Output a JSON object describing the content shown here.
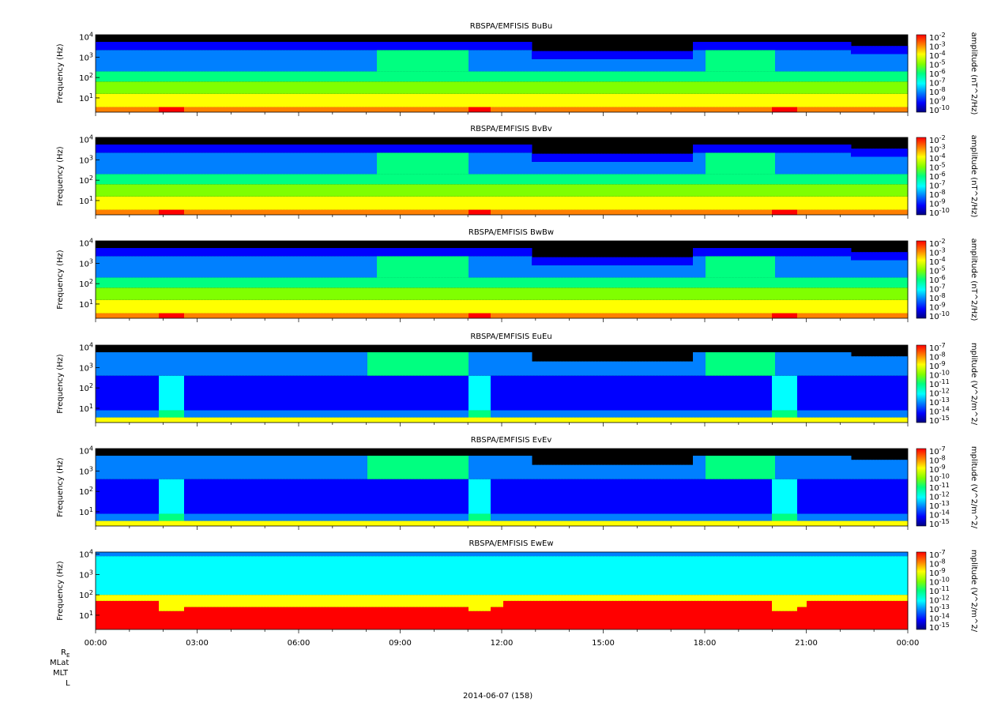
{
  "chart_data": {
    "type": "heatmap",
    "panels": [
      {
        "title": "RBSPA/EMFISIS  BuBu",
        "component": "Bu",
        "ylabel": "Frequency (Hz)",
        "yscale": "log",
        "yticks": [
          "10^1",
          "10^2",
          "10^3",
          "10^4"
        ],
        "colorbar_label": "amplitude (nT^2/Hz)",
        "colorbar_ticks": [
          "10^-2",
          "10^-3",
          "10^-4",
          "10^-5",
          "10^-6",
          "10^-7",
          "10^-8",
          "10^-9",
          "10^-10"
        ],
        "crange_exp": [
          -10,
          -2
        ]
      },
      {
        "title": "RBSPA/EMFISIS  BvBv",
        "component": "Bv",
        "ylabel": "Frequency (Hz)",
        "yscale": "log",
        "yticks": [
          "10^1",
          "10^2",
          "10^3",
          "10^4"
        ],
        "colorbar_label": "amplitude (nT^2/Hz)",
        "colorbar_ticks": [
          "10^-2",
          "10^-3",
          "10^-4",
          "10^-5",
          "10^-6",
          "10^-7",
          "10^-8",
          "10^-9",
          "10^-10"
        ],
        "crange_exp": [
          -10,
          -2
        ]
      },
      {
        "title": "RBSPA/EMFISIS  BwBw",
        "component": "Bw",
        "ylabel": "Frequency (Hz)",
        "yscale": "log",
        "yticks": [
          "10^1",
          "10^2",
          "10^3",
          "10^4"
        ],
        "colorbar_label": "amplitude (nT^2/Hz)",
        "colorbar_ticks": [
          "10^-2",
          "10^-3",
          "10^-4",
          "10^-5",
          "10^-6",
          "10^-7",
          "10^-8",
          "10^-9",
          "10^-10"
        ],
        "crange_exp": [
          -10,
          -2
        ]
      },
      {
        "title": "RBSPA/EMFISIS  EuEu",
        "component": "Eu",
        "ylabel": "Frequency (Hz)",
        "yscale": "log",
        "yticks": [
          "10^1",
          "10^2",
          "10^3",
          "10^4"
        ],
        "colorbar_label": "mplitude (V^2/m^2/",
        "colorbar_ticks": [
          "10^-7",
          "10^-8",
          "10^-9",
          "10^-10",
          "10^-11",
          "10^-12",
          "10^-13",
          "10^-14",
          "10^-15"
        ],
        "crange_exp": [
          -15,
          -7
        ]
      },
      {
        "title": "RBSPA/EMFISIS  EvEv",
        "component": "Ev",
        "ylabel": "Frequency (Hz)",
        "yscale": "log",
        "yticks": [
          "10^1",
          "10^2",
          "10^3",
          "10^4"
        ],
        "colorbar_label": "mplitude (V^2/m^2/",
        "colorbar_ticks": [
          "10^-7",
          "10^-8",
          "10^-9",
          "10^-10",
          "10^-11",
          "10^-12",
          "10^-13",
          "10^-14",
          "10^-15"
        ],
        "crange_exp": [
          -15,
          -7
        ]
      },
      {
        "title": "RBSPA/EMFISIS  EwEw",
        "component": "Ew",
        "ylabel": "Frequency (Hz)",
        "yscale": "log",
        "yticks": [
          "10^1",
          "10^2",
          "10^3",
          "10^4"
        ],
        "colorbar_label": "mplitude (V^2/m^2/",
        "colorbar_ticks": [
          "10^-7",
          "10^-8",
          "10^-9",
          "10^-10",
          "10^-11",
          "10^-12",
          "10^-13",
          "10^-14",
          "10^-15"
        ],
        "crange_exp": [
          -15,
          -7
        ]
      }
    ],
    "x_ticks": [
      "00:00",
      "03:00",
      "06:00",
      "09:00",
      "12:00",
      "15:00",
      "18:00",
      "21:00",
      "00:00"
    ],
    "x_range_hours": [
      0,
      24
    ],
    "ephemeris_labels": [
      "R",
      "MLat",
      "MLT",
      "L"
    ],
    "date_label": "2014-06-07 (158)"
  },
  "colors": {
    "colormap": [
      "#000080",
      "#0000ff",
      "#0080ff",
      "#00ffff",
      "#00ff80",
      "#80ff00",
      "#ffff00",
      "#ff8000",
      "#ff0000"
    ],
    "fill_above": "#000000"
  }
}
